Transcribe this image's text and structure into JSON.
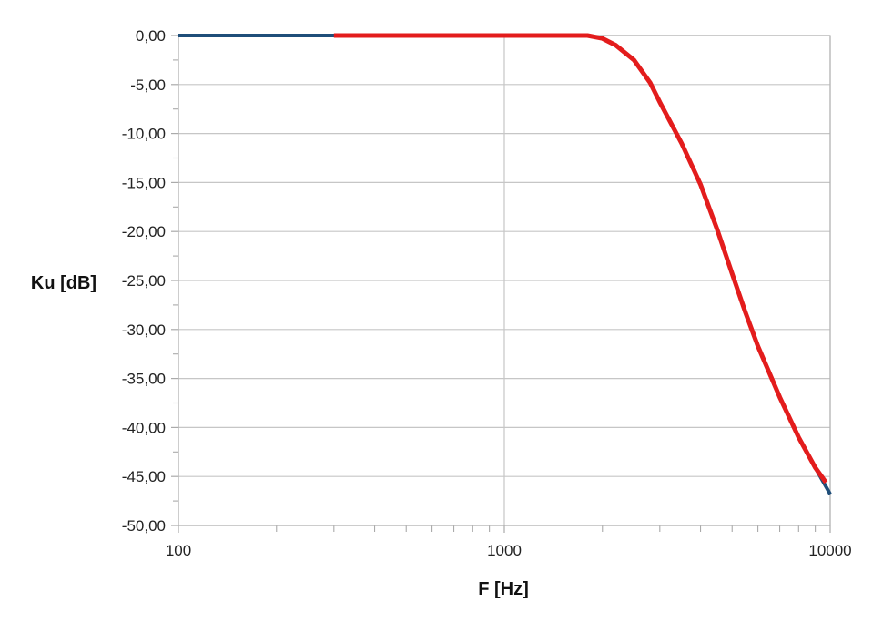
{
  "chart_data": {
    "type": "line",
    "title": "",
    "xlabel": "F [Hz]",
    "ylabel": "Ku [dB]",
    "x_scale": "log",
    "xlim": [
      100,
      10000
    ],
    "ylim": [
      -50,
      0
    ],
    "x_ticks": [
      "100",
      "1000",
      "10000"
    ],
    "y_ticks": [
      "0,00",
      "-5,00",
      "-10,00",
      "-15,00",
      "-20,00",
      "-25,00",
      "-30,00",
      "-35,00",
      "-40,00",
      "-45,00",
      "-50,00"
    ],
    "grid": true,
    "legend": "none",
    "series": [
      {
        "color": "#1f4e79",
        "x": [
          100,
          200,
          300,
          500,
          800,
          1000,
          1500,
          1800,
          2000,
          2200,
          2500,
          2800,
          3000,
          3500,
          4000,
          4500,
          5000,
          5500,
          6000,
          7000,
          8000,
          9000,
          10000
        ],
        "y": [
          0,
          0,
          0,
          0,
          0,
          0,
          0,
          0,
          -0.3,
          -1.0,
          -2.5,
          -4.8,
          -6.8,
          -11.0,
          -15.2,
          -19.8,
          -24.3,
          -28.3,
          -31.7,
          -36.9,
          -41.0,
          -44.1,
          -46.8
        ]
      },
      {
        "color": "#e31c1c",
        "x": [
          300,
          500,
          800,
          1000,
          1500,
          1800,
          2000,
          2200,
          2500,
          2800,
          3000,
          3500,
          4000,
          4500,
          5000,
          5500,
          6000,
          7000,
          8000,
          9000,
          9700
        ],
        "y": [
          0,
          0,
          0,
          0,
          0,
          0,
          -0.3,
          -1.0,
          -2.5,
          -4.8,
          -6.8,
          -11.0,
          -15.2,
          -19.8,
          -24.3,
          -28.3,
          -31.7,
          -36.9,
          -41.0,
          -44.1,
          -45.6
        ]
      }
    ]
  }
}
